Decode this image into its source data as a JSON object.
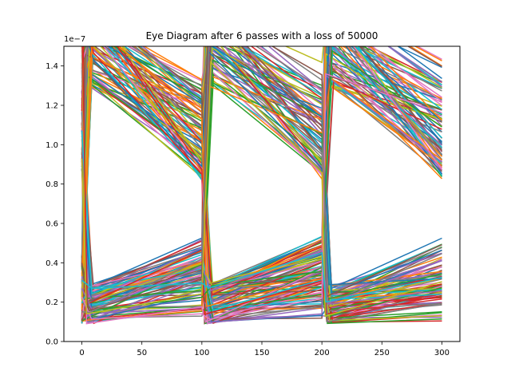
{
  "chart_data": {
    "type": "line",
    "title": "Eye Diagram after 6 passes with a loss of 50000",
    "xlabel": "",
    "ylabel": "",
    "xlim": [
      -15,
      315
    ],
    "ylim": [
      0,
      1.5e-07
    ],
    "y_offset_text": "1e−7",
    "x_ticks": [
      0,
      50,
      100,
      150,
      200,
      250,
      300
    ],
    "x_tick_labels": [
      "0",
      "50",
      "100",
      "150",
      "200",
      "250",
      "300"
    ],
    "y_ticks": [
      0.0,
      2e-08,
      4e-08,
      6e-08,
      8e-08,
      1e-07,
      1.2e-07,
      1.4e-07
    ],
    "y_tick_labels": [
      "0.0",
      "0.2",
      "0.4",
      "0.6",
      "0.8",
      "1.0",
      "1.2",
      "1.4"
    ],
    "grid": false,
    "legend": "none",
    "transition_times": [
      0,
      100,
      200,
      300
    ],
    "rise_width": 10,
    "trace_count": 180,
    "series_colors": [
      "#1f77b4",
      "#ff7f0e",
      "#2ca02c",
      "#d62728",
      "#9467bd",
      "#8c564b",
      "#e377c2",
      "#7f7f7f",
      "#bcbd22",
      "#17becf"
    ]
  }
}
